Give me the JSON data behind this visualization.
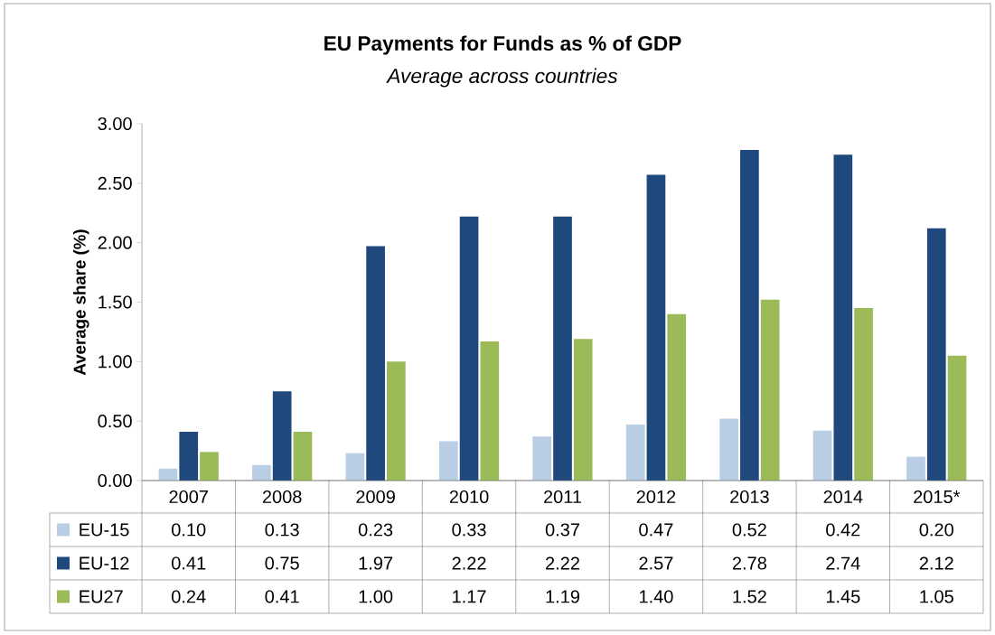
{
  "chart_data": {
    "type": "bar",
    "title": "**EU Payments for Funds as % of GDP**",
    "subtitle": "*Average across countries*",
    "ylabel": "Average share (%)",
    "categories": [
      "2007",
      "2008",
      "2009",
      "2010",
      "2011",
      "2012",
      "2013",
      "2014",
      "2015*"
    ],
    "series": [
      {
        "name": "EU-15",
        "color": "#b9cde5",
        "values": [
          0.1,
          0.13,
          0.23,
          0.33,
          0.37,
          0.47,
          0.52,
          0.42,
          0.2
        ],
        "value_labels": [
          "0.10",
          "0.13",
          "0.23",
          "0.33",
          "0.37",
          "0.47",
          "0.52",
          "0.42",
          "0.20"
        ]
      },
      {
        "name": "EU-12",
        "color": "#1f497d",
        "values": [
          0.41,
          0.75,
          1.97,
          2.22,
          2.22,
          2.57,
          2.78,
          2.74,
          2.12
        ],
        "value_labels": [
          "0.41",
          "0.75",
          "1.97",
          "2.22",
          "2.22",
          "2.57",
          "2.78",
          "2.74",
          "2.12"
        ]
      },
      {
        "name": "EU27",
        "color": "#9bbb59",
        "values": [
          0.24,
          0.41,
          1.0,
          1.17,
          1.19,
          1.4,
          1.52,
          1.45,
          1.05
        ],
        "value_labels": [
          "0.24",
          "0.41",
          "1.00",
          "1.17",
          "1.19",
          "1.40",
          "1.52",
          "1.45",
          "1.05"
        ]
      }
    ],
    "ylim": [
      0,
      3
    ],
    "yticks": [
      {
        "value": 0,
        "label": "0.00"
      },
      {
        "value": 0.5,
        "label": "0.50"
      },
      {
        "value": 1,
        "label": "1.00"
      },
      {
        "value": 1.5,
        "label": "1.50"
      },
      {
        "value": 2,
        "label": "2.00"
      },
      {
        "value": 2.5,
        "label": "2.50"
      },
      {
        "value": 3,
        "label": "3.00"
      }
    ],
    "grid": false,
    "legend": "bottom"
  }
}
